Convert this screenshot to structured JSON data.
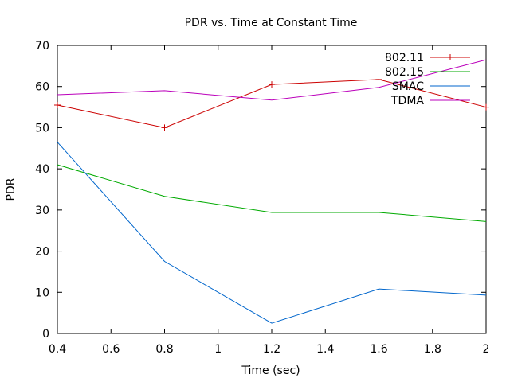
{
  "chart_data": {
    "type": "line",
    "title": "PDR vs. Time at Constant Time",
    "xlabel": "Time (sec)",
    "ylabel": "PDR",
    "xlim": [
      0.4,
      2
    ],
    "ylim": [
      0,
      70
    ],
    "x_ticks": [
      "0.4",
      "0.6",
      "0.8",
      "1",
      "1.2",
      "1.4",
      "1.6",
      "1.8",
      "2"
    ],
    "y_ticks": [
      "0",
      "10",
      "20",
      "30",
      "40",
      "50",
      "60",
      "70"
    ],
    "x_tick_values": [
      0.4,
      0.6,
      0.8,
      1.0,
      1.2,
      1.4,
      1.6,
      1.8,
      2.0
    ],
    "y_tick_values": [
      0,
      10,
      20,
      30,
      40,
      50,
      60,
      70
    ],
    "grid": false,
    "legend_position": "top-right",
    "series": [
      {
        "name": "802.11",
        "color": "#cc0000",
        "marker": "plus",
        "x": [
          0.4,
          0.8,
          1.2,
          1.6,
          2.0
        ],
        "y": [
          55.5,
          50,
          60.5,
          61.7,
          55
        ]
      },
      {
        "name": "802.15",
        "color": "#00aa00",
        "marker": "none",
        "x": [
          0.4,
          0.8,
          1.2,
          1.6,
          2.0
        ],
        "y": [
          41,
          33.3,
          29.4,
          29.4,
          27.2
        ]
      },
      {
        "name": "SMAC",
        "color": "#0066cc",
        "marker": "none",
        "x": [
          0.4,
          0.8,
          1.2,
          1.6,
          2.0
        ],
        "y": [
          46.5,
          17.5,
          2.5,
          10.8,
          9.3
        ]
      },
      {
        "name": "TDMA",
        "color": "#bb00bb",
        "marker": "none",
        "x": [
          0.4,
          0.8,
          1.2,
          1.6,
          2.0
        ],
        "y": [
          58,
          59,
          56.7,
          59.8,
          66.5
        ]
      }
    ]
  }
}
